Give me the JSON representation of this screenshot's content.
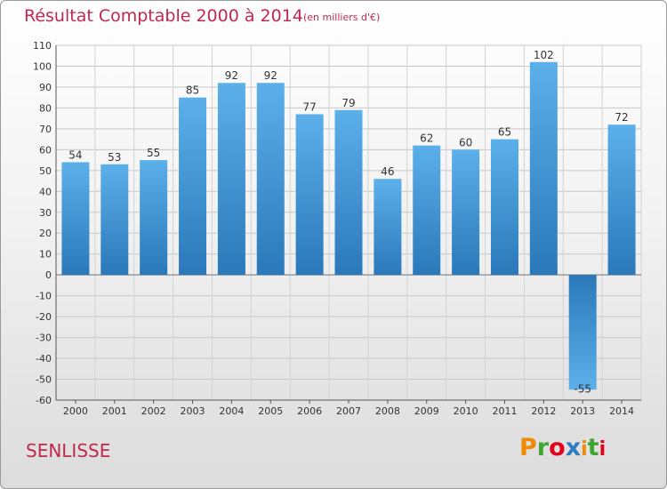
{
  "chart_data": {
    "type": "bar",
    "title": "Résultat Comptable 2000 à 2014",
    "subtitle": "(en milliers d'€)",
    "categories": [
      "2000",
      "2001",
      "2002",
      "2003",
      "2004",
      "2005",
      "2006",
      "2007",
      "2008",
      "2009",
      "2010",
      "2011",
      "2012",
      "2013",
      "2014"
    ],
    "values": [
      54,
      53,
      55,
      85,
      92,
      92,
      77,
      79,
      46,
      62,
      60,
      65,
      102,
      -55,
      72
    ],
    "data_labels": [
      "54",
      "53",
      "55",
      "85",
      "92",
      "92",
      "77",
      "79",
      "46",
      "62",
      "60",
      "65",
      "102",
      "-55",
      "72"
    ],
    "ylim": [
      -60,
      110
    ],
    "yticks": [
      -60,
      -50,
      -40,
      -30,
      -20,
      -10,
      0,
      10,
      20,
      30,
      40,
      50,
      60,
      70,
      80,
      90,
      100,
      110
    ],
    "xlabel": "",
    "ylabel": "",
    "grid": true,
    "colors": {
      "bar_light": "#5cb0ea",
      "bar_dark": "#2a78b9",
      "title": "#c0284d"
    }
  },
  "footer": {
    "place": "SENLISSE"
  },
  "brand": {
    "name": "Proxiti",
    "letters": [
      "P",
      "r",
      "o",
      "x",
      "i",
      "t",
      "i"
    ],
    "letter_colors": [
      "#f18a00",
      "#3fa535",
      "#e3001b",
      "#2e7dc4",
      "#f18a00",
      "#3fa535",
      "#e3001b"
    ]
  }
}
